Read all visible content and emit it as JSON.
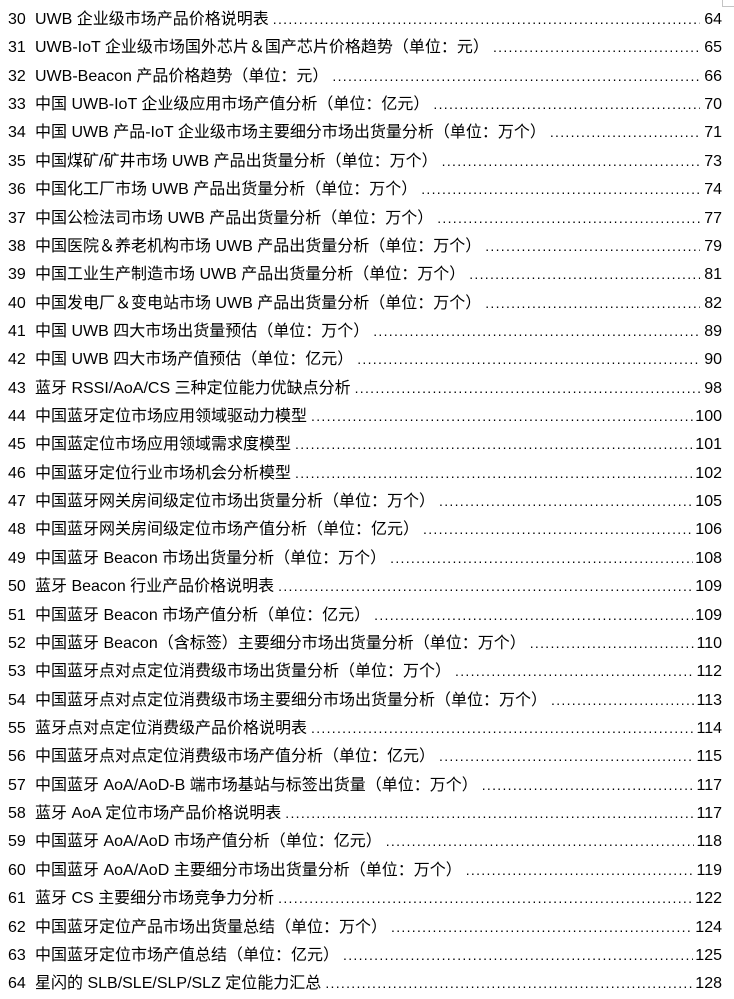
{
  "colors": {
    "text": "#000000",
    "boundary_mark": "#c4c4c4",
    "background": "#ffffff"
  },
  "toc": {
    "entries": [
      {
        "num": "30",
        "title": "UWB 企业级市场产品价格说明表",
        "page": "64"
      },
      {
        "num": "31",
        "title": "UWB-IoT 企业级市场国外芯片＆国产芯片价格趋势（单位：元）",
        "page": "65"
      },
      {
        "num": "32",
        "title": "UWB-Beacon 产品价格趋势（单位：元）",
        "page": "66"
      },
      {
        "num": "33",
        "title": "中国 UWB-IoT 企业级应用市场产值分析（单位：亿元）",
        "page": "70"
      },
      {
        "num": "34",
        "title": "中国 UWB 产品-IoT 企业级市场主要细分市场出货量分析（单位：万个）",
        "page": "71"
      },
      {
        "num": "35",
        "title": "中国煤矿/矿井市场 UWB 产品出货量分析（单位：万个）",
        "page": "73"
      },
      {
        "num": "36",
        "title": "中国化工厂市场 UWB 产品出货量分析（单位：万个）",
        "page": "74"
      },
      {
        "num": "37",
        "title": "中国公检法司市场 UWB 产品出货量分析（单位：万个）",
        "page": "77"
      },
      {
        "num": "38",
        "title": "中国医院＆养老机构市场 UWB 产品出货量分析（单位：万个）",
        "page": "79"
      },
      {
        "num": "39",
        "title": "中国工业生产制造市场 UWB 产品出货量分析（单位：万个）",
        "page": "81"
      },
      {
        "num": "40",
        "title": "中国发电厂＆变电站市场 UWB 产品出货量分析（单位：万个）",
        "page": "82"
      },
      {
        "num": "41",
        "title": "中国 UWB 四大市场出货量预估（单位：万个）",
        "page": "89"
      },
      {
        "num": "42",
        "title": "中国 UWB 四大市场产值预估（单位：亿元）",
        "page": "90"
      },
      {
        "num": "43",
        "title": "蓝牙 RSSI/AoA/CS 三种定位能力优缺点分析",
        "page": "98"
      },
      {
        "num": "44",
        "title": "中国蓝牙定位市场应用领域驱动力模型",
        "page": "100"
      },
      {
        "num": "45",
        "title": "中国蓝定位市场应用领域需求度模型",
        "page": "101"
      },
      {
        "num": "46",
        "title": "中国蓝牙定位行业市场机会分析模型",
        "page": "102"
      },
      {
        "num": "47",
        "title": "中国蓝牙网关房间级定位市场出货量分析（单位：万个）",
        "page": "105"
      },
      {
        "num": "48",
        "title": "中国蓝牙网关房间级定位市场产值分析（单位：亿元）",
        "page": "106"
      },
      {
        "num": "49",
        "title": "中国蓝牙 Beacon 市场出货量分析（单位：万个）",
        "page": "108"
      },
      {
        "num": "50",
        "title": "蓝牙 Beacon 行业产品价格说明表",
        "page": "109"
      },
      {
        "num": "51",
        "title": "中国蓝牙 Beacon 市场产值分析（单位：亿元）",
        "page": "109"
      },
      {
        "num": "52",
        "title": "中国蓝牙 Beacon（含标签）主要细分市场出货量分析（单位：万个）",
        "page": "110"
      },
      {
        "num": "53",
        "title": "中国蓝牙点对点定位消费级市场出货量分析（单位：万个）",
        "page": "112"
      },
      {
        "num": "54",
        "title": "中国蓝牙点对点定位消费级市场主要细分市场出货量分析（单位：万个）",
        "page": "113"
      },
      {
        "num": "55",
        "title": "蓝牙点对点定位消费级产品价格说明表",
        "page": "114"
      },
      {
        "num": "56",
        "title": "中国蓝牙点对点定位消费级市场产值分析（单位：亿元）",
        "page": "115"
      },
      {
        "num": "57",
        "title": "中国蓝牙 AoA/AoD-B 端市场基站与标签出货量（单位：万个）",
        "page": "117"
      },
      {
        "num": "58",
        "title": "蓝牙 AoA 定位市场产品价格说明表",
        "page": "117"
      },
      {
        "num": "59",
        "title": "中国蓝牙 AoA/AoD 市场产值分析（单位：亿元）",
        "page": "118"
      },
      {
        "num": "60",
        "title": "中国蓝牙 AoA/AoD 主要细分市场出货量分析（单位：万个）",
        "page": "119"
      },
      {
        "num": "61",
        "title": "蓝牙 CS 主要细分市场竞争力分析",
        "page": "122"
      },
      {
        "num": "62",
        "title": "中国蓝牙定位产品市场出货量总结（单位：万个）",
        "page": "124"
      },
      {
        "num": "63",
        "title": "中国蓝牙定位市场产值总结（单位：亿元）",
        "page": "125"
      },
      {
        "num": "64",
        "title": "星闪的 SLB/SLE/SLP/SLZ 定位能力汇总",
        "page": "128"
      }
    ]
  }
}
